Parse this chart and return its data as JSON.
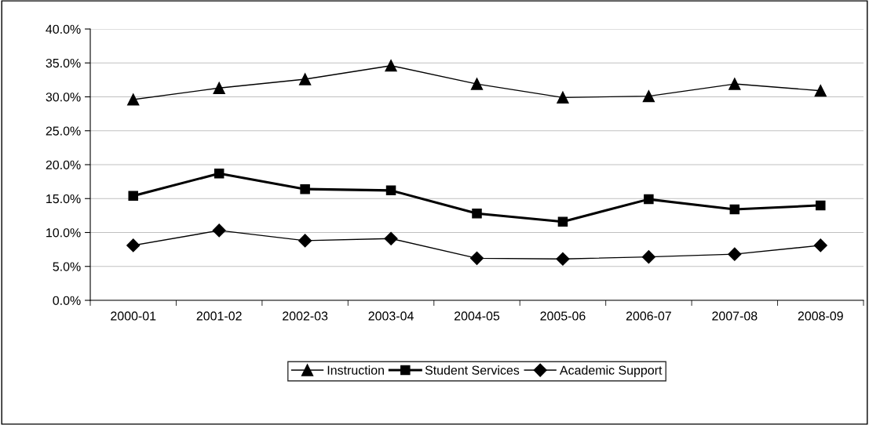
{
  "chart_data": {
    "type": "line",
    "categories": [
      "2000-01",
      "2001-02",
      "2002-03",
      "2003-04",
      "2004-05",
      "2005-06",
      "2006-07",
      "2007-08",
      "2008-09"
    ],
    "series": [
      {
        "name": "Instruction",
        "color": "#000000",
        "marker": "triangle",
        "values": [
          29.6,
          31.3,
          32.6,
          34.6,
          31.9,
          29.9,
          30.1,
          31.9,
          30.9
        ]
      },
      {
        "name": "Student Services",
        "color": "#000000",
        "marker": "square",
        "values": [
          15.4,
          18.7,
          16.4,
          16.2,
          12.8,
          11.6,
          14.9,
          13.4,
          14.0
        ]
      },
      {
        "name": "Academic Support",
        "color": "#000000",
        "marker": "diamond",
        "values": [
          8.1,
          10.3,
          8.8,
          9.1,
          6.2,
          6.1,
          6.4,
          6.8,
          8.1
        ]
      }
    ],
    "ylim": [
      0,
      40
    ],
    "yticks": [
      {
        "value": 0,
        "label": "0.0%"
      },
      {
        "value": 5,
        "label": "5.0%"
      },
      {
        "value": 10,
        "label": "10.0%"
      },
      {
        "value": 15,
        "label": "15.0%"
      },
      {
        "value": 20,
        "label": "20.0%"
      },
      {
        "value": 25,
        "label": "25.0%"
      },
      {
        "value": 30,
        "label": "30.0%"
      },
      {
        "value": 35,
        "label": "35.0%"
      },
      {
        "value": 40,
        "label": "40.0%"
      }
    ],
    "grid": "y",
    "legend": "bottom",
    "line_style": "solid"
  }
}
